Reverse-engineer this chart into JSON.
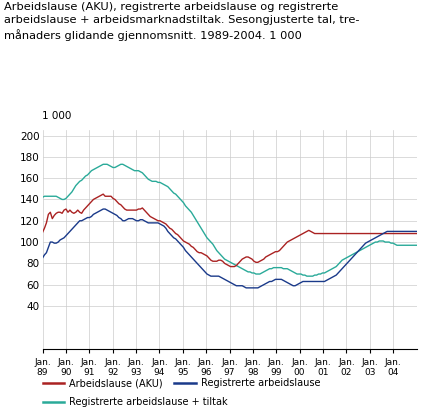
{
  "title_line1": "Arbeidslause (AKU), registrerte arbeidslause og registrerte",
  "title_line2": "arbeidslause + arbeidsmarknadstiltak. Sesongjusterte tal, tre-",
  "title_line3": "månaders glidande gjennomsnitt. 1989-2004. 1 000",
  "ylabel_top": "1 000",
  "ylim": [
    0,
    205
  ],
  "yticks": [
    0,
    40,
    60,
    80,
    100,
    120,
    140,
    160,
    180,
    200
  ],
  "legend": [
    {
      "label": "Arbeidslause (AKU)",
      "color": "#aa2222"
    },
    {
      "label": "Registrerte arbeidslause",
      "color": "#1a3a8a"
    },
    {
      "label": "Registrerte arbeidslause + tiltak",
      "color": "#2aaa99"
    }
  ],
  "background_color": "#ffffff",
  "grid_color": "#cccccc",
  "aku": [
    109,
    113,
    118,
    126,
    128,
    122,
    125,
    127,
    128,
    128,
    127,
    130,
    131,
    128,
    130,
    128,
    127,
    128,
    130,
    128,
    127,
    130,
    132,
    134,
    136,
    138,
    140,
    141,
    142,
    143,
    144,
    145,
    143,
    143,
    143,
    143,
    141,
    140,
    138,
    136,
    135,
    133,
    131,
    130,
    130,
    130,
    130,
    130,
    130,
    131,
    131,
    132,
    130,
    128,
    126,
    124,
    123,
    122,
    121,
    120,
    120,
    119,
    118,
    117,
    115,
    113,
    112,
    110,
    108,
    107,
    105,
    103,
    101,
    100,
    99,
    98,
    96,
    95,
    93,
    91,
    90,
    90,
    89,
    88,
    87,
    85,
    83,
    82,
    82,
    82,
    83,
    83,
    82,
    80,
    79,
    78,
    77,
    77,
    77,
    78,
    80,
    82,
    84,
    85,
    86,
    86,
    85,
    84,
    82,
    81,
    81,
    82,
    83,
    84,
    86,
    87,
    88,
    89,
    90,
    91,
    91,
    92,
    94,
    96,
    98,
    100,
    101,
    102,
    103,
    104,
    105,
    106,
    107,
    108,
    109,
    110,
    111,
    110,
    109,
    108,
    108,
    108,
    108,
    108,
    108,
    108,
    108,
    108,
    108,
    108,
    108,
    108,
    108,
    108,
    108,
    108,
    108,
    108,
    108,
    108,
    108,
    108,
    108,
    108,
    108,
    108,
    108,
    108,
    108,
    108,
    108,
    108,
    108,
    108,
    108,
    108,
    108,
    108,
    108,
    108,
    108,
    108,
    108,
    108,
    108,
    108,
    108,
    108,
    108,
    108,
    108,
    108,
    108,
    108,
    108,
    108
  ],
  "reg": [
    85,
    88,
    90,
    95,
    100,
    100,
    99,
    99,
    100,
    102,
    103,
    104,
    106,
    108,
    110,
    112,
    114,
    116,
    118,
    120,
    120,
    121,
    122,
    123,
    123,
    124,
    126,
    127,
    128,
    129,
    130,
    131,
    131,
    130,
    129,
    128,
    127,
    126,
    125,
    123,
    122,
    120,
    120,
    121,
    122,
    122,
    122,
    121,
    120,
    120,
    121,
    121,
    120,
    119,
    118,
    118,
    118,
    118,
    118,
    118,
    117,
    116,
    115,
    113,
    110,
    108,
    106,
    104,
    103,
    101,
    99,
    97,
    95,
    92,
    90,
    88,
    86,
    84,
    82,
    80,
    78,
    76,
    74,
    72,
    70,
    69,
    68,
    68,
    68,
    68,
    68,
    67,
    66,
    65,
    64,
    63,
    62,
    61,
    60,
    59,
    59,
    59,
    59,
    58,
    57,
    57,
    57,
    57,
    57,
    57,
    57,
    58,
    59,
    60,
    61,
    62,
    63,
    63,
    64,
    65,
    65,
    65,
    65,
    64,
    63,
    62,
    61,
    60,
    59,
    59,
    60,
    61,
    62,
    63,
    63,
    63,
    63,
    63,
    63,
    63,
    63,
    63,
    63,
    63,
    63,
    64,
    65,
    66,
    67,
    68,
    69,
    71,
    73,
    75,
    77,
    79,
    81,
    83,
    85,
    87,
    89,
    91,
    93,
    95,
    97,
    99,
    100,
    101,
    102,
    103,
    104,
    105,
    106,
    107,
    108,
    109,
    110,
    110,
    110,
    110,
    110,
    110,
    110,
    110,
    110,
    110,
    110,
    110,
    110,
    110,
    110,
    110,
    110,
    110,
    110,
    110
  ],
  "tiltak": [
    142,
    143,
    143,
    143,
    143,
    143,
    143,
    143,
    142,
    141,
    140,
    140,
    141,
    143,
    145,
    147,
    150,
    153,
    155,
    157,
    158,
    160,
    162,
    163,
    165,
    167,
    168,
    169,
    170,
    171,
    172,
    173,
    173,
    173,
    172,
    171,
    170,
    170,
    171,
    172,
    173,
    173,
    172,
    171,
    170,
    169,
    168,
    167,
    167,
    167,
    166,
    165,
    163,
    161,
    159,
    158,
    157,
    157,
    157,
    156,
    156,
    155,
    154,
    153,
    152,
    150,
    148,
    146,
    145,
    143,
    141,
    139,
    137,
    134,
    132,
    130,
    128,
    125,
    122,
    119,
    116,
    113,
    110,
    107,
    104,
    102,
    100,
    98,
    95,
    92,
    90,
    88,
    86,
    84,
    83,
    82,
    81,
    80,
    79,
    78,
    77,
    76,
    75,
    74,
    73,
    72,
    72,
    71,
    71,
    70,
    70,
    70,
    71,
    72,
    73,
    74,
    75,
    75,
    76,
    76,
    76,
    76,
    76,
    75,
    75,
    75,
    74,
    73,
    72,
    71,
    70,
    70,
    70,
    69,
    69,
    68,
    68,
    68,
    68,
    69,
    69,
    70,
    70,
    71,
    71,
    72,
    73,
    74,
    75,
    76,
    77,
    79,
    81,
    83,
    84,
    85,
    86,
    87,
    88,
    89,
    90,
    91,
    92,
    93,
    94,
    95,
    96,
    97,
    98,
    99,
    100,
    100,
    101,
    101,
    101,
    100,
    100,
    100,
    99,
    99,
    98,
    97,
    97,
    97,
    97,
    97,
    97,
    97,
    97,
    97,
    97,
    97,
    97,
    97,
    97,
    97
  ]
}
